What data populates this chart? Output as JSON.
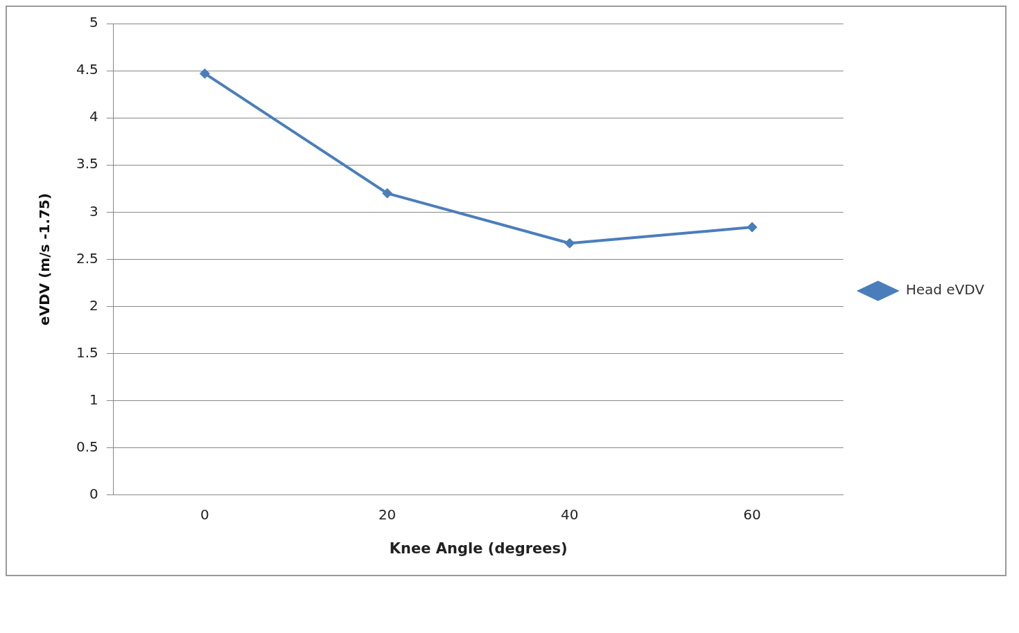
{
  "chart_data": {
    "type": "line",
    "xlabel": "Knee Angle (degrees)",
    "ylabel": "eVDV (m/s -1.75)",
    "categories": [
      "0",
      "20",
      "40",
      "60"
    ],
    "series": [
      {
        "name": "Head eVDV",
        "color": "#4a7ebb",
        "values": [
          4.47,
          3.2,
          2.67,
          2.84
        ]
      }
    ],
    "ylim": [
      0,
      5
    ],
    "yticks": [
      0,
      0.5,
      1,
      1.5,
      2,
      2.5,
      3,
      3.5,
      4,
      4.5,
      5
    ],
    "grid": "y",
    "legend": "right",
    "marker": "diamond",
    "line_style": "solid"
  }
}
